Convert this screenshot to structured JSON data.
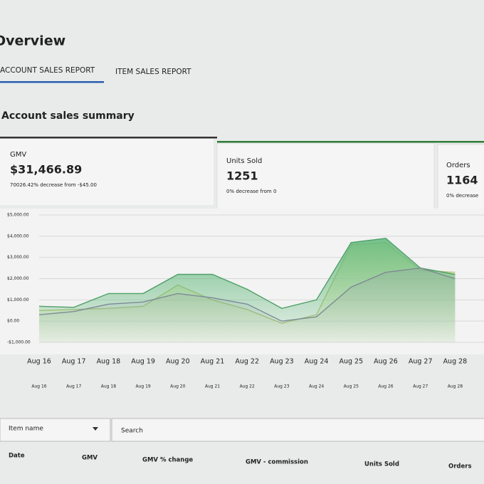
{
  "header": {
    "title": "Overview"
  },
  "tabs": [
    "ACCOUNT SALES REPORT",
    "ITEM SALES REPORT"
  ],
  "summary": {
    "title": "Account sales summary"
  },
  "metrics": [
    {
      "label": "GMV",
      "value": "$31,466.89",
      "note": "70026.42% decrease from -$45.00"
    },
    {
      "label": "Units Sold",
      "value": "1251",
      "note": "0% decrease from 0"
    },
    {
      "label": "Orders",
      "value": "1164",
      "note": "0% decrease"
    }
  ],
  "chart_data": {
    "type": "area",
    "categories": [
      "Aug 16",
      "Aug 17",
      "Aug 18",
      "Aug 19",
      "Aug 20",
      "Aug 21",
      "Aug 22",
      "Aug 23",
      "Aug 24",
      "Aug 25",
      "Aug 26",
      "Aug 27",
      "Aug 28"
    ],
    "minor_categories": [
      "Aug 16",
      "Aug 17",
      "Aug 18",
      "Aug 19",
      "Aug 20",
      "Aug 21",
      "Aug 22",
      "Aug 23",
      "Aug 24",
      "Aug 25",
      "Aug 26",
      "Aug 27",
      "Aug 28"
    ],
    "ylim": [
      -1000,
      5000
    ],
    "yticks": [
      {
        "value": -1000,
        "label": "-$1,000.00"
      },
      {
        "value": 0,
        "label": "$0.00"
      },
      {
        "value": 1000,
        "label": "$1,000.00"
      },
      {
        "value": 2000,
        "label": "$2,000.00"
      },
      {
        "value": 3000,
        "label": "$3,000.00"
      },
      {
        "value": 4000,
        "label": "$4,000.00"
      },
      {
        "value": 5000,
        "label": "$5,000.00"
      }
    ],
    "grid": true,
    "series": [
      {
        "color": "#dbe6a6",
        "values": [
          500,
          550,
          600,
          700,
          1700,
          1000,
          550,
          -100,
          300,
          3600,
          3700,
          2400,
          2300
        ]
      },
      {
        "color": "#5fb87a",
        "values": [
          700,
          650,
          1300,
          1300,
          2200,
          2200,
          1500,
          600,
          1000,
          3700,
          3900,
          2500,
          2200
        ]
      },
      {
        "color": "#8c9aa6",
        "values": [
          300,
          450,
          800,
          900,
          1300,
          1100,
          800,
          0,
          200,
          1600,
          2300,
          2500,
          2000
        ]
      }
    ]
  },
  "filters": {
    "dropdown": "Item name",
    "search": "Search"
  },
  "table": {
    "headers": [
      "Date",
      "GMV",
      "GMV % change",
      "GMV - commission",
      "Units Sold",
      "Orders"
    ]
  }
}
